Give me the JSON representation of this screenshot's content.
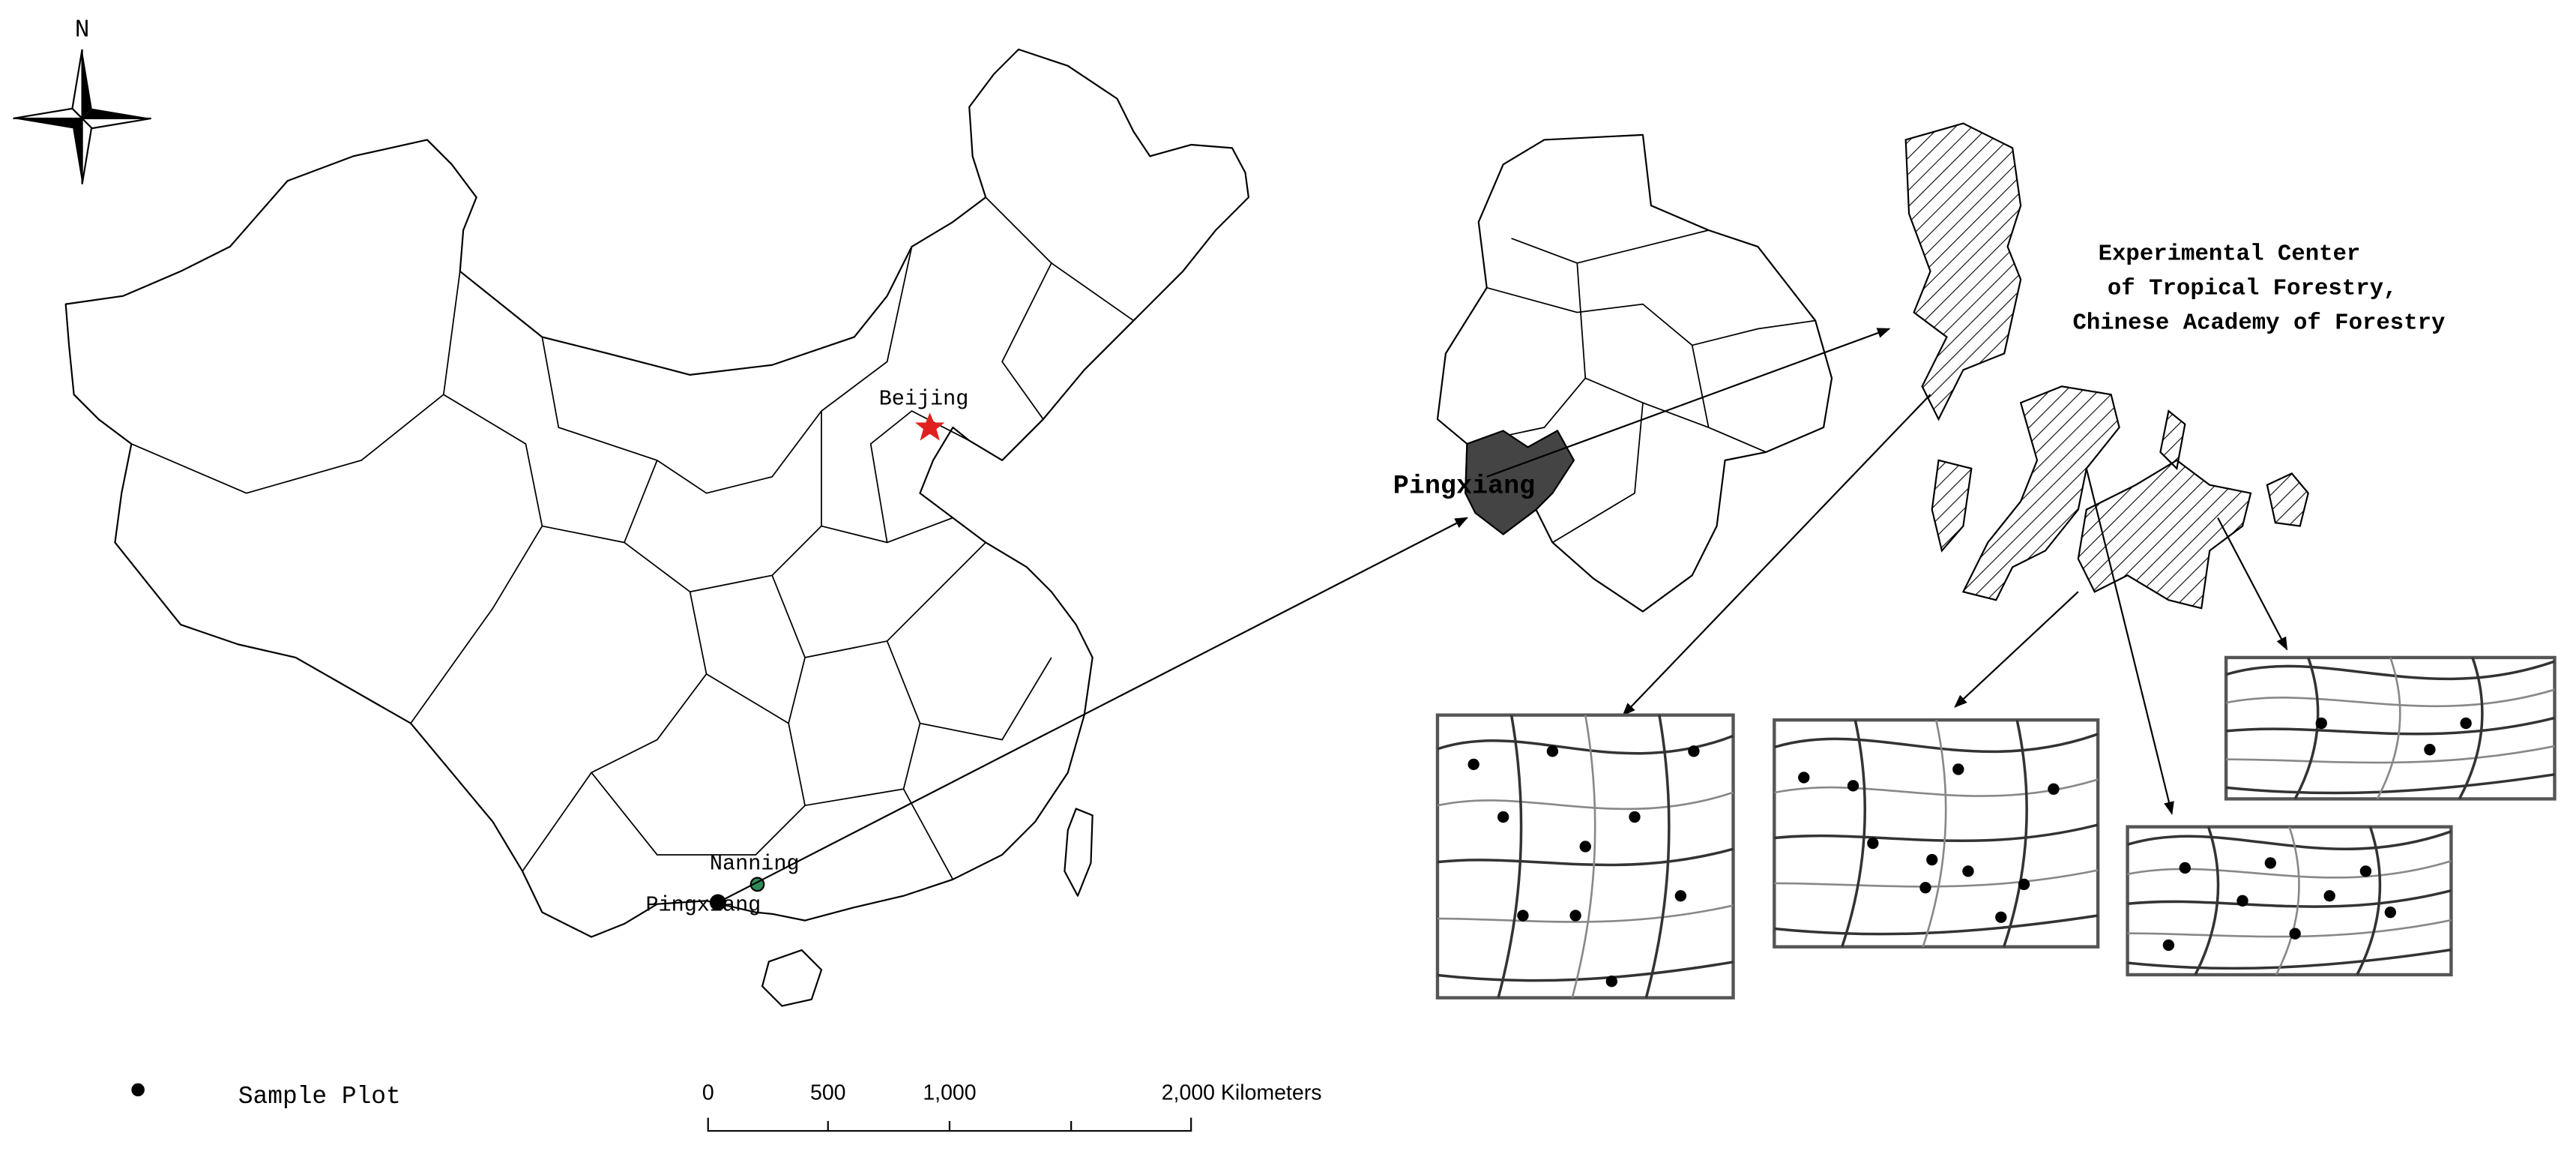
{
  "compass": {
    "label": "N"
  },
  "main_map": {
    "labels": {
      "capital": "Beijing",
      "city": "Nanning",
      "site": "Pingxiang"
    }
  },
  "county_map": {
    "label": "Pingxiang"
  },
  "forest_center": {
    "lines": [
      "Experimental Center",
      "of Tropical Forestry,",
      "Chinese Academy of Forestry"
    ]
  },
  "legend": {
    "label": "Sample Plot"
  },
  "scale_bar": {
    "labels": [
      "0",
      "500",
      "1,000",
      "2,000 Kilometers"
    ]
  }
}
